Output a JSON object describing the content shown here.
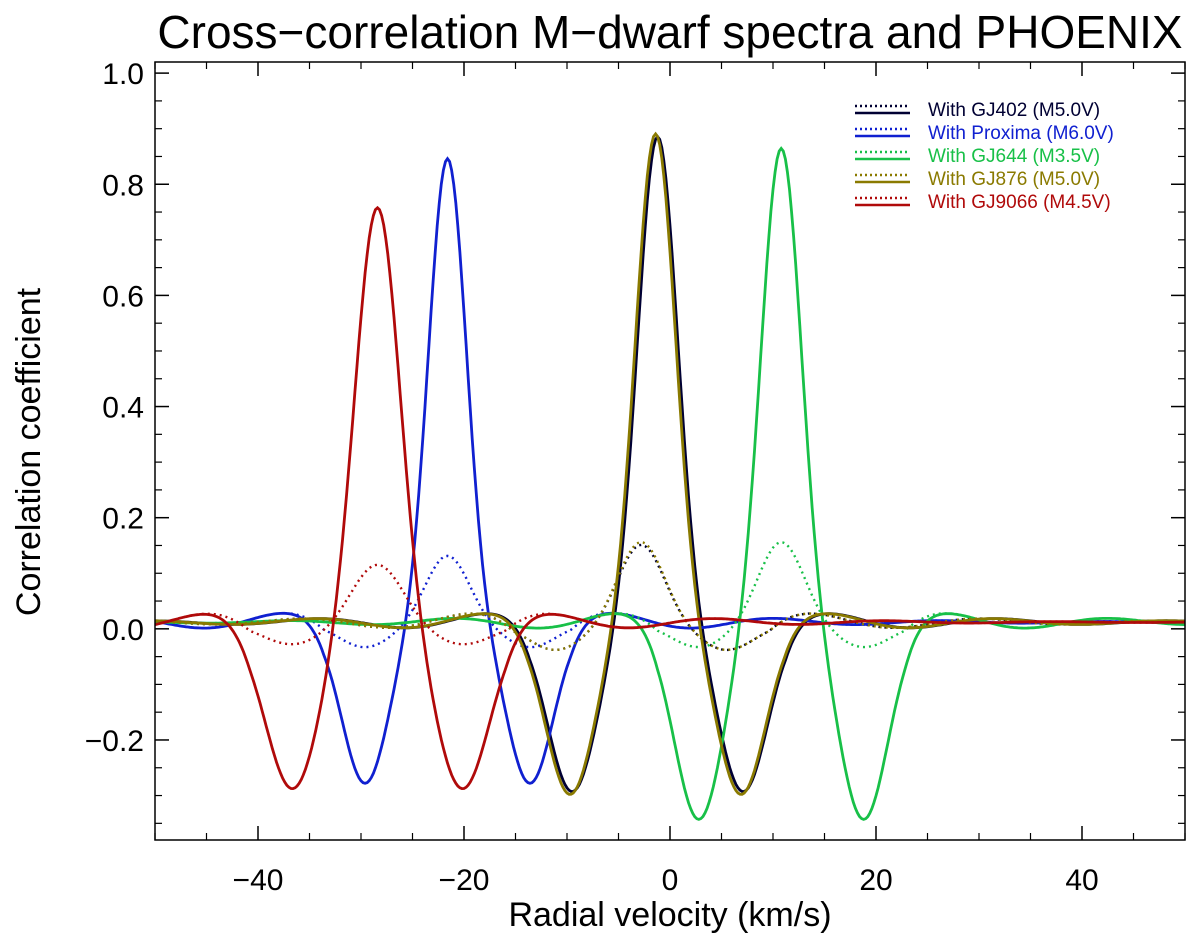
{
  "chart_data": {
    "type": "line",
    "title": "Cross−correlation M−dwarf spectra and PHOENIX",
    "xlabel": "Radial velocity (km/s)",
    "ylabel": "Correlation coefficient",
    "xlim": [
      -50,
      50
    ],
    "ylim": [
      -0.38,
      1.02
    ],
    "x_ticks": [
      -40,
      -20,
      0,
      20,
      40
    ],
    "x_tick_labels": [
      "−40",
      "−20",
      "0",
      "20",
      "40"
    ],
    "y_ticks": [
      -0.2,
      0.0,
      0.2,
      0.4,
      0.6,
      0.8,
      1.0
    ],
    "y_tick_labels": [
      "−0.2",
      "0.0",
      "0.2",
      "0.4",
      "0.6",
      "0.8",
      "1.0"
    ],
    "legend_position": "top-right",
    "series": [
      {
        "name": "With GJ402 (M5.0V)",
        "color": "#000033",
        "solid_center": -1.2,
        "solid_peak": 0.875,
        "solid_trough": -0.305,
        "dotted_center": -2.8,
        "dotted_peak": 0.14,
        "dotted_trough": -0.05,
        "sigma": 1.9,
        "period": 16.6
      },
      {
        "name": "With Proxima (M6.0V)",
        "color": "#1020d0",
        "solid_center": -21.6,
        "solid_peak": 0.835,
        "solid_trough": -0.29,
        "dotted_center": -21.6,
        "dotted_peak": 0.12,
        "dotted_trough": -0.045,
        "sigma": 1.8,
        "period": 16.0
      },
      {
        "name": "With GJ644 (M3.5V)",
        "color": "#18c048",
        "solid_center": 10.8,
        "solid_peak": 0.855,
        "solid_trough": -0.355,
        "dotted_center": 10.8,
        "dotted_peak": 0.145,
        "dotted_trough": -0.045,
        "sigma": 1.9,
        "period": 16.0
      },
      {
        "name": "With GJ876 (M5.0V)",
        "color": "#8a7a00",
        "solid_center": -1.4,
        "solid_peak": 0.88,
        "solid_trough": -0.31,
        "dotted_center": -2.8,
        "dotted_peak": 0.145,
        "dotted_trough": -0.05,
        "sigma": 1.9,
        "period": 16.6
      },
      {
        "name": "With GJ9066 (M4.5V)",
        "color": "#b00a0a",
        "solid_center": -28.4,
        "solid_peak": 0.75,
        "solid_trough": -0.3,
        "dotted_center": -28.4,
        "dotted_peak": 0.105,
        "dotted_trough": -0.04,
        "sigma": 2.1,
        "period": 16.5
      }
    ]
  }
}
